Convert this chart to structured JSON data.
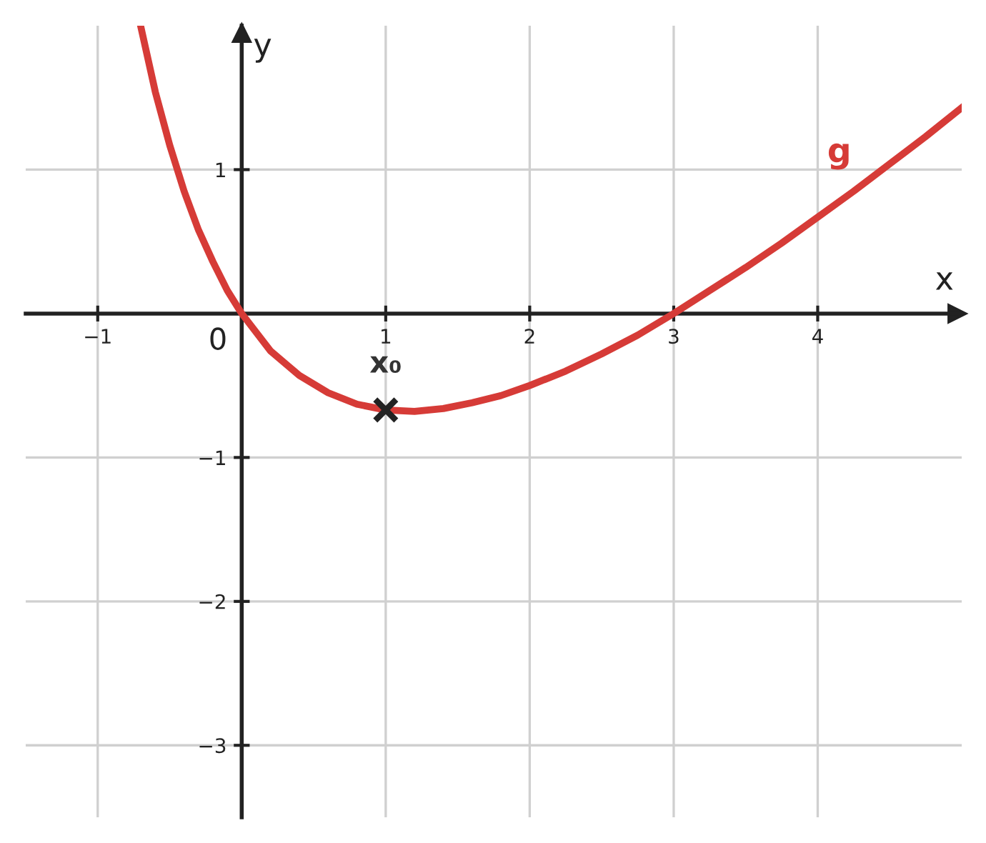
{
  "chart_data": {
    "type": "line",
    "xlabel": "x",
    "ylabel": "y",
    "series": [
      {
        "name": "g",
        "color": "#d63b37",
        "x": [
          -0.7,
          -0.6,
          -0.5,
          -0.4,
          -0.3,
          -0.2,
          -0.1,
          0,
          0.2,
          0.4,
          0.6,
          0.8,
          1.0,
          1.2,
          1.4,
          1.6,
          1.8,
          2.0,
          2.25,
          2.5,
          2.75,
          3,
          3.25,
          3.5,
          3.75,
          4,
          4.25,
          4.5,
          4.75,
          5
        ],
        "values": [
          1.99,
          1.54,
          1.17,
          0.85,
          0.58,
          0.36,
          0.16,
          0,
          -0.26,
          -0.43,
          -0.55,
          -0.63,
          -0.67,
          -0.68,
          -0.66,
          -0.62,
          -0.57,
          -0.5,
          -0.4,
          -0.28,
          -0.15,
          0,
          0.16,
          0.32,
          0.49,
          0.67,
          0.85,
          1.04,
          1.23,
          1.43
        ]
      },
      {
        "type": "scatter",
        "marker": "cross",
        "color": "#222222",
        "x": [
          1
        ],
        "values": [
          -0.67
        ]
      }
    ],
    "annotations": [
      "x₀",
      "0"
    ],
    "xlim": [
      -1.5,
      5
    ],
    "ylim": [
      -3.5,
      2
    ],
    "xticks": [
      -1,
      1,
      2,
      3,
      4
    ],
    "yticks": [
      -3,
      -2,
      -1,
      1
    ],
    "grid": true,
    "legend": false,
    "line_style": "solid"
  }
}
